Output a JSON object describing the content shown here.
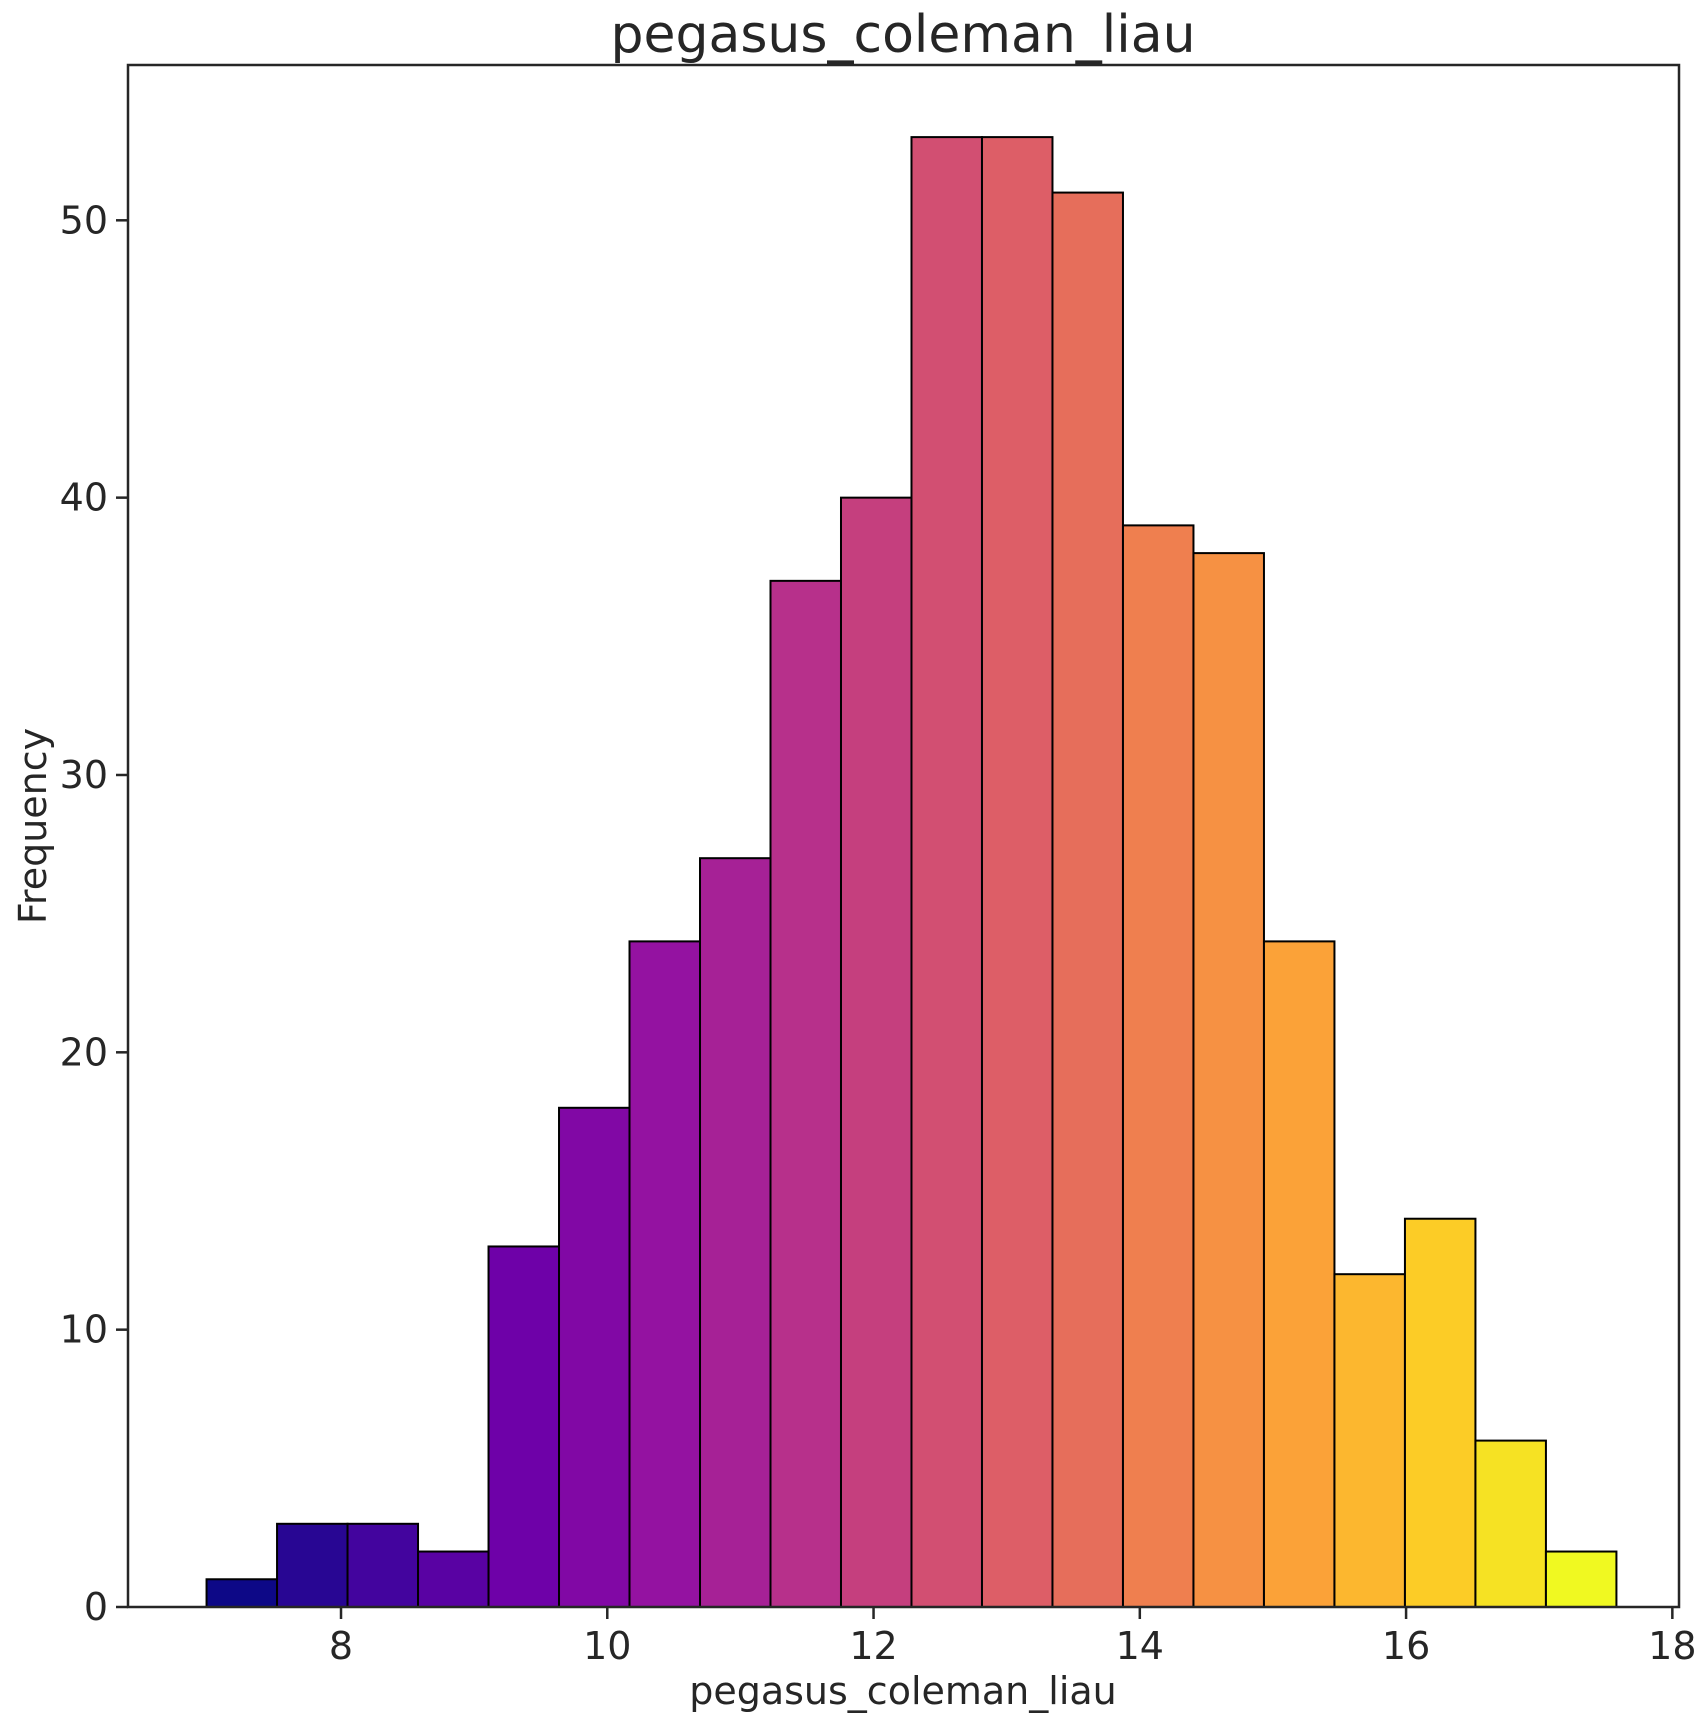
{
  "chart_data": {
    "type": "bar",
    "title": "pegasus_coleman_liau",
    "xlabel": "pegasus_coleman_liau",
    "ylabel": "Frequency",
    "xlim": [
      6.4,
      18.05
    ],
    "ylim": [
      0,
      55.6
    ],
    "x_ticks": [
      8,
      10,
      12,
      14,
      16,
      18
    ],
    "y_ticks": [
      0,
      10,
      20,
      30,
      40,
      50
    ],
    "bin_start": 6.99,
    "bin_width": 0.5295,
    "values": [
      1,
      3,
      3,
      2,
      13,
      18,
      24,
      27,
      37,
      40,
      53,
      53,
      51,
      39,
      38,
      24,
      12,
      14,
      6,
      2
    ],
    "colormap": "plasma",
    "bar_edge_color": "#000000",
    "grid": false
  }
}
